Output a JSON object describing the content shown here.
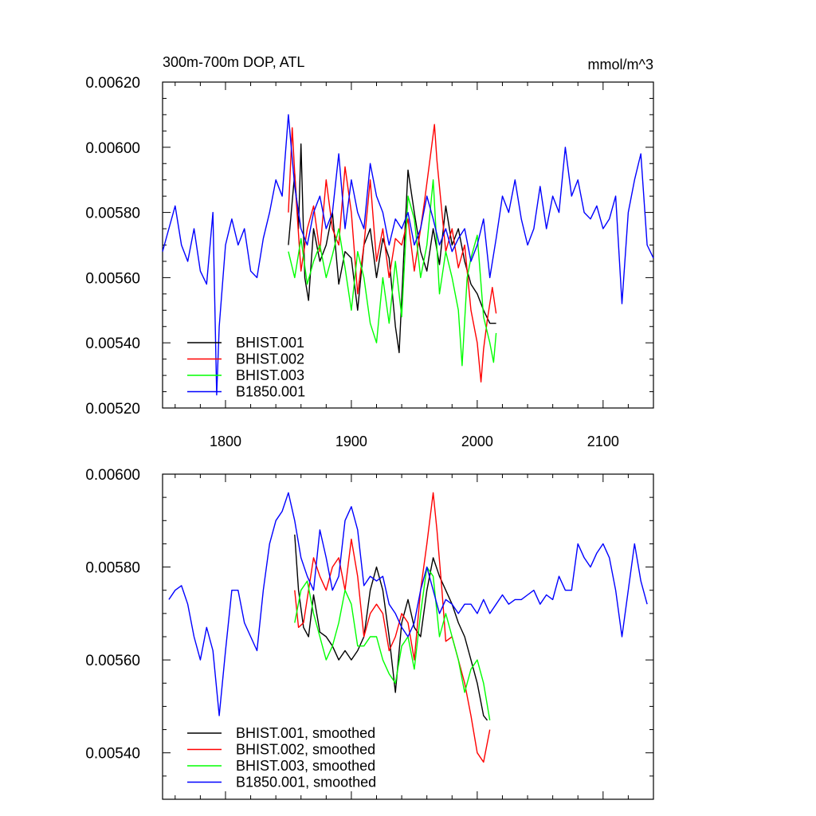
{
  "chart_data": [
    {
      "type": "line",
      "title": "300m-700m DOP, ATL",
      "units_label": "mmol/m^3",
      "xlim": [
        1750,
        2140
      ],
      "ylim": [
        0.0052,
        0.0062
      ],
      "y_ticks": [
        "0.00520",
        "0.00540",
        "0.00560",
        "0.00580",
        "0.00600",
        "0.00620"
      ],
      "x_ticks": [
        "1800",
        "1900",
        "2000",
        "2100"
      ],
      "legend_position": "bottom-left",
      "series": [
        {
          "name": "BHIST.001",
          "color": "#000000",
          "x": [
            1850,
            1855,
            1858,
            1860,
            1863,
            1866,
            1870,
            1875,
            1880,
            1885,
            1890,
            1895,
            1900,
            1905,
            1910,
            1915,
            1920,
            1925,
            1930,
            1935,
            1938,
            1942,
            1945,
            1950,
            1955,
            1960,
            1965,
            1970,
            1975,
            1980,
            1985,
            1990,
            1995,
            2000,
            2005,
            2010,
            2015
          ],
          "values": [
            0.0057,
            0.00592,
            0.00575,
            0.00601,
            0.0056,
            0.00553,
            0.00575,
            0.00565,
            0.0057,
            0.0058,
            0.00558,
            0.00568,
            0.00566,
            0.0055,
            0.0057,
            0.00575,
            0.0056,
            0.00572,
            0.00566,
            0.00545,
            0.00537,
            0.0057,
            0.00593,
            0.0058,
            0.00568,
            0.00562,
            0.00575,
            0.00564,
            0.00582,
            0.0057,
            0.00575,
            0.00565,
            0.00558,
            0.00555,
            0.0055,
            0.00546,
            0.00546
          ]
        },
        {
          "name": "BHIST.002",
          "color": "#ff0000",
          "x": [
            1850,
            1853,
            1856,
            1860,
            1865,
            1870,
            1875,
            1880,
            1885,
            1890,
            1895,
            1900,
            1905,
            1910,
            1915,
            1920,
            1925,
            1930,
            1935,
            1940,
            1945,
            1950,
            1955,
            1958,
            1962,
            1966,
            1968,
            1972,
            1975,
            1980,
            1985,
            1990,
            1995,
            2000,
            2003,
            2005,
            2008,
            2012,
            2015
          ],
          "values": [
            0.0058,
            0.00606,
            0.00585,
            0.00562,
            0.00575,
            0.00582,
            0.00568,
            0.0059,
            0.00575,
            0.0057,
            0.00594,
            0.0058,
            0.00555,
            0.0057,
            0.0059,
            0.00565,
            0.00575,
            0.0056,
            0.00572,
            0.0057,
            0.00578,
            0.00562,
            0.00575,
            0.00583,
            0.00595,
            0.00607,
            0.00596,
            0.0058,
            0.00568,
            0.00575,
            0.00563,
            0.0057,
            0.0055,
            0.0054,
            0.00528,
            0.00538,
            0.00547,
            0.00557,
            0.00549
          ]
        },
        {
          "name": "BHIST.003",
          "color": "#00ff00",
          "x": [
            1850,
            1855,
            1860,
            1865,
            1870,
            1875,
            1880,
            1885,
            1890,
            1895,
            1900,
            1905,
            1910,
            1915,
            1920,
            1925,
            1930,
            1935,
            1940,
            1945,
            1950,
            1955,
            1960,
            1965,
            1970,
            1975,
            1980,
            1985,
            1988,
            1992,
            1995,
            2000,
            2005,
            2010,
            2013,
            2015
          ],
          "values": [
            0.00568,
            0.0056,
            0.00572,
            0.00558,
            0.00565,
            0.0057,
            0.0056,
            0.00567,
            0.00575,
            0.00563,
            0.0055,
            0.00568,
            0.0056,
            0.00546,
            0.0054,
            0.0056,
            0.00546,
            0.00565,
            0.00548,
            0.00585,
            0.00578,
            0.0056,
            0.0057,
            0.0059,
            0.00555,
            0.00568,
            0.0056,
            0.0055,
            0.00533,
            0.0056,
            0.00566,
            0.00573,
            0.00548,
            0.0054,
            0.00534,
            0.00543
          ]
        },
        {
          "name": "B1850.001",
          "color": "#0000ff",
          "x": [
            1750,
            1755,
            1760,
            1765,
            1770,
            1775,
            1780,
            1785,
            1790,
            1793,
            1795,
            1800,
            1805,
            1810,
            1815,
            1820,
            1825,
            1830,
            1835,
            1840,
            1845,
            1850,
            1855,
            1860,
            1865,
            1870,
            1875,
            1880,
            1885,
            1890,
            1895,
            1900,
            1905,
            1910,
            1915,
            1920,
            1925,
            1930,
            1935,
            1940,
            1945,
            1950,
            1955,
            1960,
            1965,
            1970,
            1975,
            1980,
            1985,
            1990,
            1995,
            2000,
            2005,
            2010,
            2015,
            2020,
            2025,
            2030,
            2035,
            2040,
            2045,
            2050,
            2055,
            2060,
            2065,
            2070,
            2075,
            2080,
            2085,
            2090,
            2095,
            2100,
            2105,
            2110,
            2115,
            2120,
            2125,
            2130,
            2135,
            2140
          ],
          "values": [
            0.00568,
            0.00575,
            0.00582,
            0.0057,
            0.00565,
            0.00575,
            0.00562,
            0.00558,
            0.0058,
            0.00524,
            0.00545,
            0.0057,
            0.00578,
            0.0057,
            0.00575,
            0.00562,
            0.0056,
            0.00572,
            0.0058,
            0.0059,
            0.00585,
            0.0061,
            0.00588,
            0.00575,
            0.0057,
            0.0058,
            0.00585,
            0.00575,
            0.0058,
            0.00598,
            0.00575,
            0.0059,
            0.0058,
            0.00575,
            0.00595,
            0.00585,
            0.0058,
            0.0057,
            0.00578,
            0.00575,
            0.0058,
            0.0057,
            0.00575,
            0.00585,
            0.00578,
            0.0057,
            0.00575,
            0.00568,
            0.00572,
            0.00575,
            0.00565,
            0.0057,
            0.00578,
            0.0056,
            0.00572,
            0.00585,
            0.0058,
            0.0059,
            0.00578,
            0.0057,
            0.00575,
            0.00588,
            0.00575,
            0.00585,
            0.0058,
            0.006,
            0.00585,
            0.0059,
            0.0058,
            0.00578,
            0.00582,
            0.00575,
            0.00578,
            0.00585,
            0.00552,
            0.0058,
            0.0059,
            0.00598,
            0.0057,
            0.00566
          ]
        }
      ]
    },
    {
      "type": "line",
      "xlim": [
        1750,
        2140
      ],
      "ylim": [
        0.0053,
        0.006
      ],
      "y_ticks": [
        "0.00540",
        "0.00560",
        "0.00580",
        "0.00600"
      ],
      "legend_position": "bottom-left",
      "series": [
        {
          "name": "BHIST.001, smoothed",
          "color": "#000000",
          "x": [
            1855,
            1858,
            1862,
            1866,
            1870,
            1875,
            1880,
            1885,
            1890,
            1895,
            1900,
            1905,
            1910,
            1915,
            1920,
            1925,
            1930,
            1935,
            1940,
            1945,
            1950,
            1955,
            1960,
            1965,
            1970,
            1975,
            1980,
            1985,
            1990,
            1995,
            2000,
            2005,
            2008
          ],
          "values": [
            0.00587,
            0.00575,
            0.00567,
            0.00565,
            0.00574,
            0.00566,
            0.00565,
            0.00563,
            0.0056,
            0.00562,
            0.0056,
            0.00562,
            0.00565,
            0.00575,
            0.0058,
            0.00575,
            0.00565,
            0.00553,
            0.00568,
            0.00573,
            0.00567,
            0.00565,
            0.00575,
            0.00582,
            0.00578,
            0.00575,
            0.00572,
            0.00568,
            0.00565,
            0.0056,
            0.00555,
            0.00548,
            0.00547
          ]
        },
        {
          "name": "BHIST.002, smoothed",
          "color": "#ff0000",
          "x": [
            1855,
            1858,
            1862,
            1866,
            1870,
            1875,
            1880,
            1885,
            1890,
            1895,
            1900,
            1905,
            1910,
            1915,
            1920,
            1925,
            1930,
            1935,
            1940,
            1945,
            1950,
            1955,
            1960,
            1965,
            1968,
            1972,
            1975,
            1980,
            1985,
            1990,
            1995,
            2000,
            2005,
            2010
          ],
          "values": [
            0.00575,
            0.00567,
            0.00568,
            0.00575,
            0.00582,
            0.00578,
            0.00575,
            0.0058,
            0.00582,
            0.00575,
            0.00586,
            0.00578,
            0.00565,
            0.0057,
            0.00572,
            0.0057,
            0.00562,
            0.00565,
            0.0057,
            0.00568,
            0.0056,
            0.00575,
            0.00585,
            0.00596,
            0.00588,
            0.00575,
            0.00564,
            0.00565,
            0.0056,
            0.00555,
            0.00548,
            0.0054,
            0.00538,
            0.00545
          ]
        },
        {
          "name": "BHIST.003, smoothed",
          "color": "#00ff00",
          "x": [
            1855,
            1860,
            1865,
            1870,
            1875,
            1880,
            1885,
            1890,
            1895,
            1900,
            1905,
            1910,
            1915,
            1920,
            1925,
            1930,
            1935,
            1940,
            1945,
            1950,
            1955,
            1960,
            1965,
            1970,
            1975,
            1980,
            1985,
            1990,
            1995,
            2000,
            2005,
            2010
          ],
          "values": [
            0.00568,
            0.00575,
            0.00577,
            0.0057,
            0.00565,
            0.0056,
            0.00563,
            0.00568,
            0.00575,
            0.00572,
            0.00563,
            0.00563,
            0.00565,
            0.00565,
            0.0056,
            0.00557,
            0.00555,
            0.00563,
            0.00565,
            0.00558,
            0.0057,
            0.0058,
            0.00578,
            0.00565,
            0.0057,
            0.00565,
            0.0056,
            0.00553,
            0.00558,
            0.0056,
            0.00555,
            0.00547
          ]
        },
        {
          "name": "B1850.001, smoothed",
          "color": "#0000ff",
          "x": [
            1755,
            1760,
            1765,
            1770,
            1775,
            1780,
            1785,
            1790,
            1795,
            1800,
            1805,
            1810,
            1815,
            1820,
            1825,
            1830,
            1835,
            1840,
            1845,
            1850,
            1855,
            1860,
            1865,
            1870,
            1875,
            1880,
            1885,
            1890,
            1895,
            1900,
            1905,
            1910,
            1915,
            1920,
            1925,
            1930,
            1935,
            1940,
            1945,
            1950,
            1955,
            1960,
            1965,
            1970,
            1975,
            1980,
            1985,
            1990,
            1995,
            2000,
            2005,
            2010,
            2015,
            2020,
            2025,
            2030,
            2035,
            2040,
            2045,
            2050,
            2055,
            2060,
            2065,
            2070,
            2075,
            2080,
            2085,
            2090,
            2095,
            2100,
            2105,
            2110,
            2115,
            2120,
            2125,
            2130,
            2135
          ],
          "values": [
            0.00573,
            0.00575,
            0.00576,
            0.00572,
            0.00565,
            0.0056,
            0.00567,
            0.00562,
            0.00548,
            0.00562,
            0.00575,
            0.00575,
            0.00568,
            0.00565,
            0.00562,
            0.00575,
            0.00585,
            0.0059,
            0.00592,
            0.00596,
            0.0059,
            0.00582,
            0.00578,
            0.00575,
            0.00588,
            0.00582,
            0.00575,
            0.00578,
            0.0059,
            0.00593,
            0.00588,
            0.00576,
            0.00578,
            0.00577,
            0.00578,
            0.00572,
            0.0057,
            0.00567,
            0.00565,
            0.00568,
            0.00575,
            0.0058,
            0.00575,
            0.0057,
            0.00573,
            0.00572,
            0.0057,
            0.00572,
            0.00572,
            0.0057,
            0.00573,
            0.0057,
            0.00572,
            0.00574,
            0.00572,
            0.00573,
            0.00573,
            0.00574,
            0.00575,
            0.00572,
            0.00574,
            0.00573,
            0.00578,
            0.00575,
            0.00575,
            0.00585,
            0.00582,
            0.0058,
            0.00583,
            0.00585,
            0.00582,
            0.00575,
            0.00565,
            0.00575,
            0.00585,
            0.00577,
            0.00572
          ]
        }
      ]
    }
  ]
}
